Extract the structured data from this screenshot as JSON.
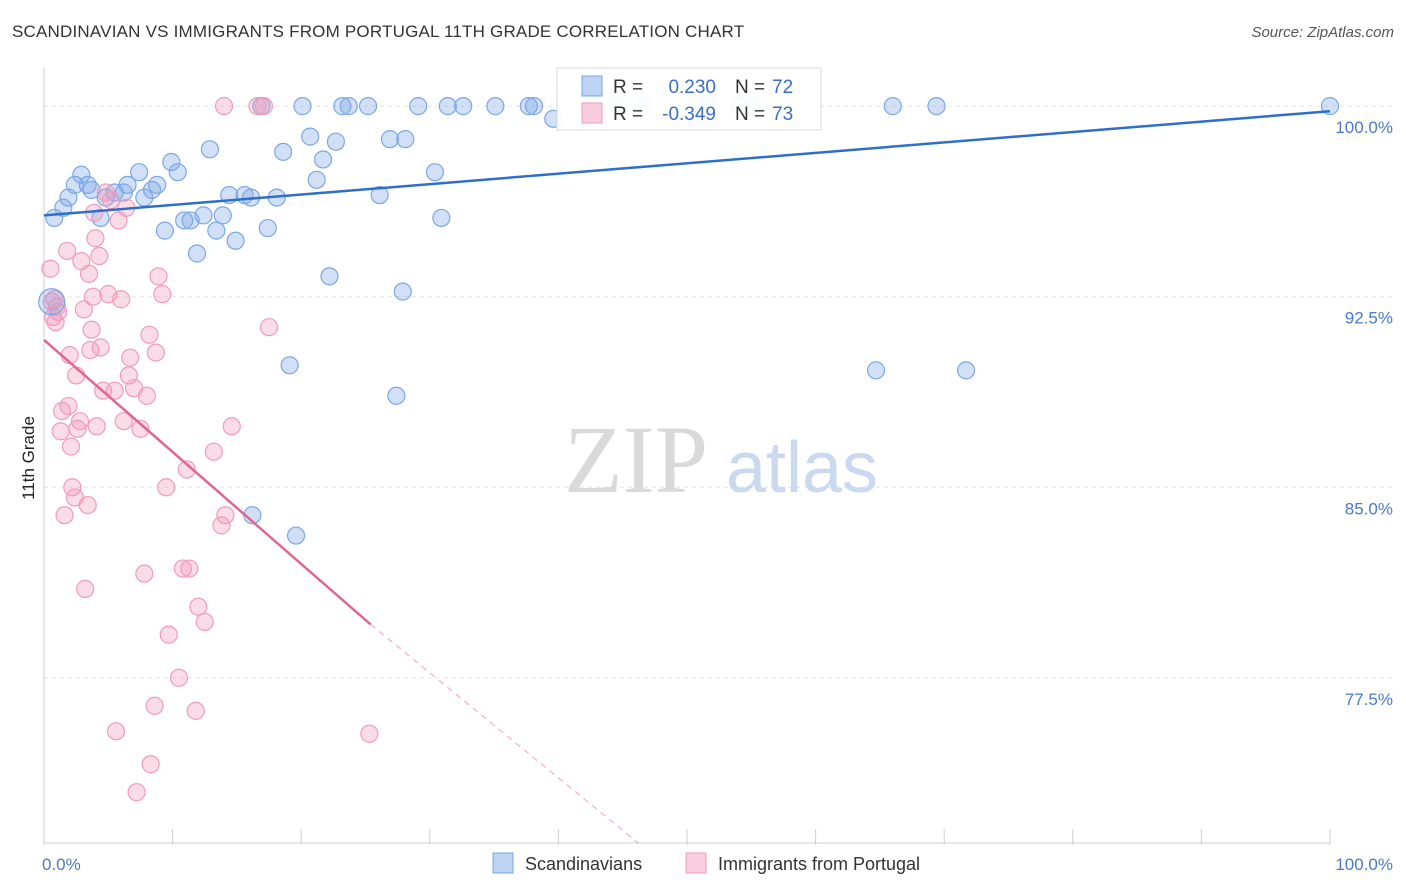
{
  "header": {
    "title": "SCANDINAVIAN VS IMMIGRANTS FROM PORTUGAL 11TH GRADE CORRELATION CHART",
    "source": "Source: ZipAtlas.com"
  },
  "watermark": {
    "zip": "ZIP",
    "atlas": "atlas"
  },
  "chart_data": {
    "type": "scatter",
    "ylabel": "11th Grade",
    "xlim": [
      0,
      100
    ],
    "ylim": [
      71.0,
      101.5
    ],
    "x_ticks": [
      0,
      10,
      20,
      30,
      40,
      50,
      60,
      70,
      80,
      90,
      100
    ],
    "x_tick_labels": [
      "0.0%",
      "100.0%"
    ],
    "y_ticks": [
      100.0,
      92.5,
      85.0,
      77.5
    ],
    "y_tick_labels": [
      "100.0%",
      "92.5%",
      "85.0%",
      "77.5%"
    ],
    "grid": true,
    "legend_position": "bottom-center",
    "stats_box": {
      "r_label": "R =",
      "n_label": "N =",
      "rows": [
        {
          "r": "0.230",
          "n": "72"
        },
        {
          "r": "-0.349",
          "n": "73"
        }
      ]
    },
    "series": [
      {
        "name": "Scandinavians",
        "color": "#7aa7e6",
        "line_color": "#2e6fc9",
        "trend": {
          "x": [
            0,
            100
          ],
          "y": [
            95.7,
            99.8
          ]
        },
        "points": [
          [
            0.8,
            95.6
          ],
          [
            1.5,
            96.0
          ],
          [
            1.9,
            96.4
          ],
          [
            2.4,
            96.9
          ],
          [
            2.9,
            97.3
          ],
          [
            3.4,
            96.9
          ],
          [
            3.7,
            96.7
          ],
          [
            4.4,
            95.6
          ],
          [
            4.8,
            96.4
          ],
          [
            5.5,
            96.6
          ],
          [
            6.2,
            96.6
          ],
          [
            6.5,
            96.9
          ],
          [
            7.4,
            97.4
          ],
          [
            7.8,
            96.4
          ],
          [
            8.4,
            96.7
          ],
          [
            8.8,
            96.9
          ],
          [
            9.4,
            95.1
          ],
          [
            9.9,
            97.8
          ],
          [
            10.4,
            97.4
          ],
          [
            10.9,
            95.5
          ],
          [
            11.4,
            95.5
          ],
          [
            11.9,
            94.2
          ],
          [
            12.4,
            95.7
          ],
          [
            12.9,
            98.3
          ],
          [
            13.4,
            95.1
          ],
          [
            13.9,
            95.7
          ],
          [
            14.4,
            96.5
          ],
          [
            14.9,
            94.7
          ],
          [
            15.6,
            96.5
          ],
          [
            16.1,
            96.4
          ],
          [
            16.9,
            100.0
          ],
          [
            17.4,
            95.2
          ],
          [
            18.1,
            96.4
          ],
          [
            18.6,
            98.2
          ],
          [
            19.1,
            89.8
          ],
          [
            19.6,
            83.1
          ],
          [
            20.1,
            100.0
          ],
          [
            20.7,
            98.8
          ],
          [
            21.2,
            97.1
          ],
          [
            21.7,
            97.9
          ],
          [
            22.2,
            93.3
          ],
          [
            22.7,
            98.6
          ],
          [
            23.2,
            100.0
          ],
          [
            23.7,
            100.0
          ],
          [
            25.2,
            100.0
          ],
          [
            26.1,
            96.5
          ],
          [
            26.9,
            98.7
          ],
          [
            27.4,
            88.6
          ],
          [
            27.9,
            92.7
          ],
          [
            28.1,
            98.7
          ],
          [
            29.1,
            100.0
          ],
          [
            30.4,
            97.4
          ],
          [
            30.9,
            95.6
          ],
          [
            31.4,
            100.0
          ],
          [
            32.6,
            100.0
          ],
          [
            35.1,
            100.0
          ],
          [
            37.7,
            100.0
          ],
          [
            38.1,
            100.0
          ],
          [
            39.6,
            99.5
          ],
          [
            42.6,
            100.0
          ],
          [
            44.6,
            100.0
          ],
          [
            46.6,
            100.0
          ],
          [
            51.1,
            100.0
          ],
          [
            51.6,
            100.0
          ],
          [
            54.1,
            100.0
          ],
          [
            55.1,
            100.0
          ],
          [
            64.7,
            89.6
          ],
          [
            71.7,
            89.6
          ],
          [
            66.0,
            100.0
          ],
          [
            69.4,
            100.0
          ],
          [
            100.0,
            100.0
          ],
          [
            16.2,
            83.9
          ]
        ]
      },
      {
        "name": "Immigrants from Portugal",
        "color": "#f29bbb",
        "line_color": "#e2668f",
        "trend": {
          "x": [
            0,
            25.4
          ],
          "y": [
            90.8,
            79.6
          ]
        },
        "trend_dashed": {
          "x": [
            25.4,
            46.2
          ],
          "y": [
            79.6,
            71.0
          ]
        },
        "points": [
          [
            0.5,
            93.6
          ],
          [
            0.6,
            92.3
          ],
          [
            0.7,
            91.7
          ],
          [
            0.9,
            91.5
          ],
          [
            1.0,
            92.1
          ],
          [
            1.1,
            91.9
          ],
          [
            1.3,
            87.2
          ],
          [
            1.4,
            88.0
          ],
          [
            1.6,
            83.9
          ],
          [
            1.8,
            94.3
          ],
          [
            1.9,
            88.2
          ],
          [
            2.0,
            90.2
          ],
          [
            2.1,
            86.6
          ],
          [
            2.2,
            85.0
          ],
          [
            2.4,
            84.6
          ],
          [
            2.5,
            89.4
          ],
          [
            2.6,
            87.3
          ],
          [
            2.8,
            87.6
          ],
          [
            2.9,
            93.9
          ],
          [
            3.1,
            92.0
          ],
          [
            3.2,
            81.0
          ],
          [
            3.4,
            84.3
          ],
          [
            3.5,
            93.4
          ],
          [
            3.6,
            90.4
          ],
          [
            3.7,
            91.2
          ],
          [
            3.8,
            92.5
          ],
          [
            3.9,
            95.8
          ],
          [
            4.0,
            94.8
          ],
          [
            4.1,
            87.4
          ],
          [
            4.3,
            94.1
          ],
          [
            4.4,
            90.5
          ],
          [
            4.6,
            88.8
          ],
          [
            4.8,
            96.6
          ],
          [
            5.0,
            92.6
          ],
          [
            5.2,
            96.3
          ],
          [
            5.5,
            88.8
          ],
          [
            5.6,
            75.4
          ],
          [
            5.8,
            95.5
          ],
          [
            6.0,
            92.4
          ],
          [
            6.2,
            87.6
          ],
          [
            6.4,
            96.0
          ],
          [
            6.6,
            89.4
          ],
          [
            6.7,
            90.1
          ],
          [
            7.0,
            88.9
          ],
          [
            7.2,
            73.0
          ],
          [
            7.5,
            87.3
          ],
          [
            7.8,
            81.6
          ],
          [
            8.0,
            88.6
          ],
          [
            8.2,
            91.0
          ],
          [
            8.3,
            74.1
          ],
          [
            8.6,
            76.4
          ],
          [
            8.7,
            90.3
          ],
          [
            8.9,
            93.3
          ],
          [
            9.2,
            92.6
          ],
          [
            9.5,
            85.0
          ],
          [
            9.7,
            79.2
          ],
          [
            10.5,
            77.5
          ],
          [
            10.8,
            81.8
          ],
          [
            11.1,
            85.7
          ],
          [
            11.3,
            81.8
          ],
          [
            11.8,
            76.2
          ],
          [
            12.0,
            80.3
          ],
          [
            12.5,
            79.7
          ],
          [
            13.2,
            86.4
          ],
          [
            13.8,
            83.5
          ],
          [
            14.1,
            83.9
          ],
          [
            14.6,
            87.4
          ],
          [
            16.6,
            100.0
          ],
          [
            17.1,
            100.0
          ],
          [
            14.0,
            100.0
          ],
          [
            17.5,
            91.3
          ],
          [
            25.3,
            75.3
          ],
          [
            0.8,
            92.4
          ]
        ]
      }
    ]
  }
}
